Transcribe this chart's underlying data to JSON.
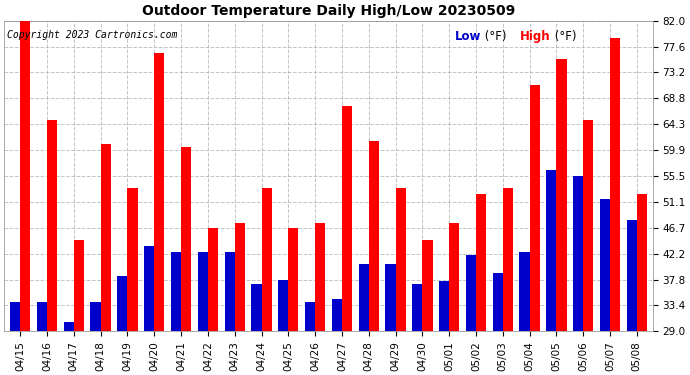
{
  "title": "Outdoor Temperature Daily High/Low 20230509",
  "copyright": "Copyright 2023 Cartronics.com",
  "dates": [
    "04/15",
    "04/16",
    "04/17",
    "04/18",
    "04/19",
    "04/20",
    "04/21",
    "04/22",
    "04/23",
    "04/24",
    "04/25",
    "04/26",
    "04/27",
    "04/28",
    "04/29",
    "04/30",
    "05/01",
    "05/02",
    "05/03",
    "05/04",
    "05/05",
    "05/06",
    "05/07",
    "05/08"
  ],
  "highs": [
    82.0,
    65.0,
    44.5,
    61.0,
    53.5,
    76.5,
    60.5,
    46.7,
    47.5,
    53.5,
    46.7,
    47.5,
    67.5,
    61.5,
    53.5,
    44.5,
    47.5,
    52.5,
    53.5,
    71.0,
    75.5,
    65.0,
    79.0,
    52.5
  ],
  "lows": [
    34.0,
    34.0,
    30.5,
    34.0,
    38.5,
    43.5,
    42.5,
    42.5,
    42.5,
    37.0,
    37.8,
    34.0,
    34.5,
    40.5,
    40.5,
    37.0,
    37.5,
    42.0,
    39.0,
    42.5,
    56.5,
    55.5,
    51.5,
    48.0
  ],
  "high_color": "#ff0000",
  "low_color": "#0000cc",
  "background_color": "#ffffff",
  "grid_color": "#aaaaaa",
  "yticks": [
    29.0,
    33.4,
    37.8,
    42.2,
    46.7,
    51.1,
    55.5,
    59.9,
    64.3,
    68.8,
    73.2,
    77.6,
    82.0
  ],
  "ylim": [
    29.0,
    82.0
  ],
  "bar_width": 0.38,
  "figsize": [
    6.9,
    3.75
  ],
  "dpi": 100
}
